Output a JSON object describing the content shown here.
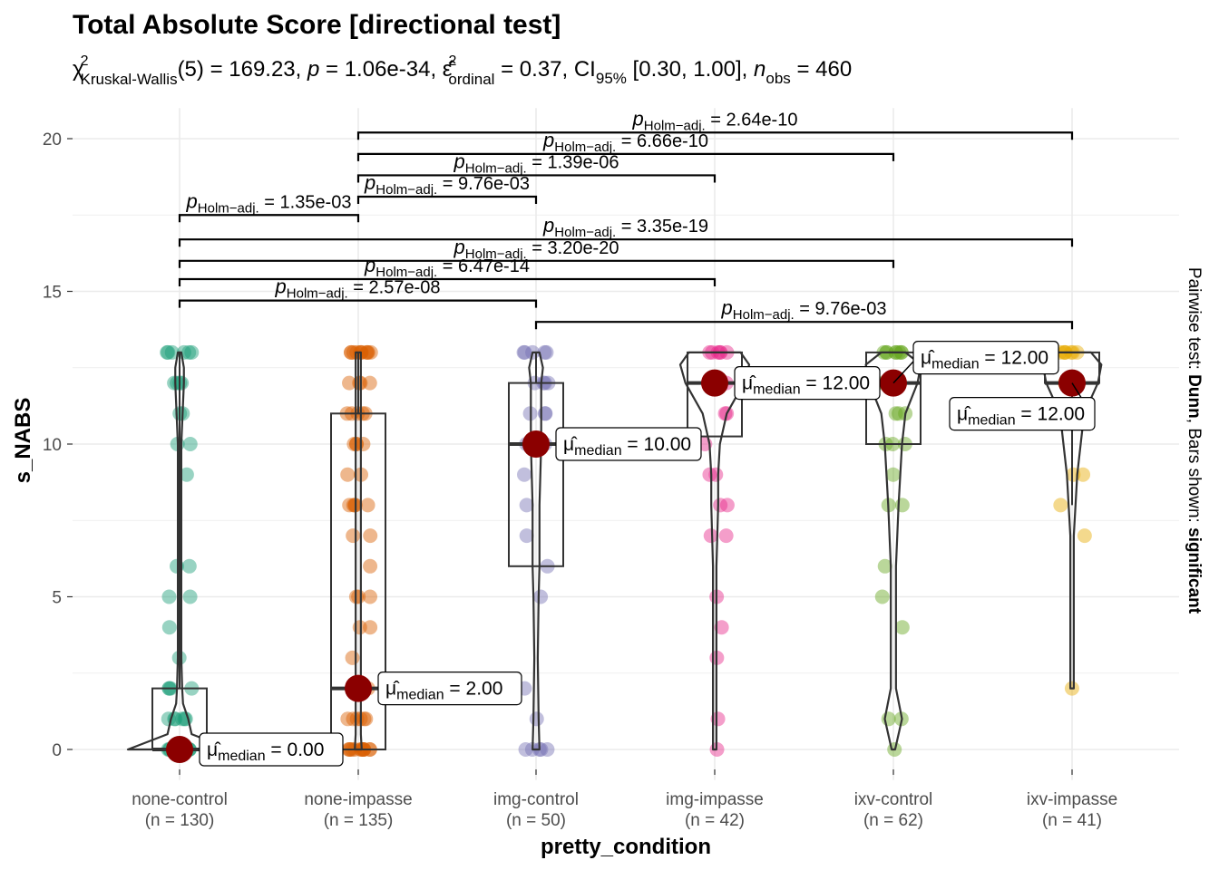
{
  "chart_data": {
    "type": "violin-box-scatter",
    "title": "Total Absolute Score [directional test]",
    "subtitle": {
      "chi_sym": "χ",
      "chi_sup": "2",
      "chi_sub": "Kruskal-Wallis",
      "chi_val": "(5) = 169.23, ",
      "p_sym": "p",
      "p_val": " = 1.06e-34, ",
      "eps_sym": "ε̂",
      "eps_sup": "2",
      "eps_sub": "ordinal",
      "eps_val": " = 0.37, CI",
      "ci_sub": "95%",
      "ci_val": " [0.30, 1.00], ",
      "n_sym": "n",
      "n_sub": "obs",
      "n_val": " = 460"
    },
    "xlabel": "pretty_condition",
    "ylabel": "s_NABS",
    "ylim": [
      -1,
      21
    ],
    "y_ticks": [
      0,
      5,
      10,
      15,
      20
    ],
    "caption": {
      "prefix": "Pairwise test: ",
      "test": "Dunn",
      "middle": ", Bars shown: ",
      "shown": "significant"
    },
    "groups": [
      {
        "label": "none-control",
        "n": "(n = 130)",
        "color": "#1B9E77",
        "q1": 0,
        "median": 0,
        "q3": 2,
        "whisker_high": 13,
        "mu_label": "0.00",
        "violin": [
          [
            0,
            60
          ],
          [
            0.5,
            14
          ],
          [
            1,
            10
          ],
          [
            1.5,
            4
          ],
          [
            2,
            3
          ],
          [
            3,
            2
          ],
          [
            5,
            2
          ],
          [
            8,
            2
          ],
          [
            10,
            2
          ],
          [
            12,
            5
          ],
          [
            12.5,
            5
          ],
          [
            13,
            2
          ]
        ],
        "points": [
          0,
          0,
          0,
          0,
          0,
          0,
          0,
          0,
          0,
          0,
          0,
          0,
          0,
          1,
          1,
          1,
          1,
          1,
          1,
          2,
          2,
          2,
          2,
          3,
          4,
          5,
          5,
          6,
          6,
          9,
          10,
          10,
          11,
          11,
          12,
          12,
          12,
          12,
          13,
          13,
          13,
          13,
          13,
          13
        ]
      },
      {
        "label": "none-impasse",
        "n": "(n = 135)",
        "color": "#D95F02",
        "q1": 0,
        "median": 2,
        "q3": 11,
        "whisker_high": 13,
        "mu_label": "2.00",
        "violin": [
          [
            0,
            4
          ],
          [
            0.5,
            3
          ],
          [
            1,
            3
          ],
          [
            2,
            3
          ],
          [
            4,
            3
          ],
          [
            6,
            3
          ],
          [
            8,
            3
          ],
          [
            10,
            3
          ],
          [
            11,
            3
          ],
          [
            12,
            3
          ],
          [
            13,
            3
          ]
        ],
        "points": [
          0,
          0,
          0,
          0,
          0,
          0,
          0,
          0,
          0,
          0,
          0,
          0,
          0,
          1,
          1,
          1,
          1,
          1,
          1,
          2,
          3,
          4,
          4,
          5,
          5,
          5,
          6,
          7,
          7,
          8,
          8,
          8,
          8,
          8,
          9,
          9,
          10,
          10,
          10,
          10,
          11,
          11,
          11,
          11,
          11,
          12,
          12,
          12,
          12,
          13,
          13,
          13,
          13,
          13,
          13,
          13,
          13,
          13,
          13,
          13
        ]
      },
      {
        "label": "img-control",
        "n": "(n = 50)",
        "color": "#7570B3",
        "q1": 6,
        "median": 10,
        "q3": 12,
        "whisker_high": 13,
        "mu_label": "10.00",
        "violin": [
          [
            0,
            4
          ],
          [
            1,
            3
          ],
          [
            3,
            2
          ],
          [
            5,
            3
          ],
          [
            6,
            4
          ],
          [
            8,
            4
          ],
          [
            10,
            6
          ],
          [
            11,
            6
          ],
          [
            12,
            6
          ],
          [
            12.5,
            8
          ],
          [
            13,
            4
          ]
        ],
        "points": [
          0,
          0,
          0,
          0,
          0,
          1,
          2,
          5,
          6,
          7,
          8,
          9,
          10,
          10,
          10,
          10,
          11,
          11,
          11,
          12,
          12,
          12,
          12,
          13,
          13,
          13,
          13,
          13
        ]
      },
      {
        "label": "img-impasse",
        "n": "(n = 42)",
        "color": "#E7298A",
        "q1": 10.25,
        "median": 12,
        "q3": 13,
        "whisker_high": 13,
        "mu_label": "12.00",
        "violin": [
          [
            0,
            2
          ],
          [
            2,
            2
          ],
          [
            4,
            2
          ],
          [
            6,
            2
          ],
          [
            7,
            3
          ],
          [
            8,
            4
          ],
          [
            9,
            4
          ],
          [
            10,
            6
          ],
          [
            11,
            14
          ],
          [
            12,
            34
          ],
          [
            12.6,
            40
          ],
          [
            13,
            30
          ]
        ],
        "points": [
          0,
          1,
          3,
          4,
          5,
          7,
          7,
          8,
          8,
          9,
          9,
          10,
          11,
          11,
          12,
          12,
          12,
          12,
          13,
          13,
          13,
          13,
          13,
          13
        ]
      },
      {
        "label": "ixv-control",
        "n": "(n = 62)",
        "color": "#66A61E",
        "q1": 10,
        "median": 12,
        "q3": 13,
        "whisker_high": 13,
        "mu_label": "12.00",
        "violin": [
          [
            0,
            2
          ],
          [
            1,
            10
          ],
          [
            2,
            3
          ],
          [
            4,
            3
          ],
          [
            6,
            3
          ],
          [
            8,
            6
          ],
          [
            10,
            10
          ],
          [
            11,
            14
          ],
          [
            12,
            28
          ],
          [
            12.6,
            32
          ],
          [
            13,
            14
          ]
        ],
        "points": [
          0,
          1,
          1,
          4,
          5,
          6,
          8,
          8,
          9,
          10,
          10,
          10,
          11,
          11,
          11,
          12,
          12,
          12,
          12,
          12,
          13,
          13,
          13,
          13,
          13,
          13,
          13,
          13
        ]
      },
      {
        "label": "ixv-impasse",
        "n": "(n = 41)",
        "color": "#E6AB02",
        "q1": 12,
        "median": 12,
        "q3": 13,
        "whisker_high": 13,
        "whisker_low": 8,
        "mu_label": "12.00",
        "violin": [
          [
            2,
            2
          ],
          [
            4,
            2
          ],
          [
            6,
            2
          ],
          [
            7,
            2
          ],
          [
            8,
            4
          ],
          [
            9,
            6
          ],
          [
            10,
            10
          ],
          [
            11,
            14
          ],
          [
            12,
            30
          ],
          [
            12.6,
            34
          ],
          [
            13,
            22
          ]
        ],
        "points": [
          2,
          7,
          8,
          9,
          9,
          11,
          12,
          12,
          12,
          12,
          12,
          12,
          12,
          13,
          13,
          13,
          13,
          13,
          13,
          13
        ]
      }
    ],
    "median_labels": {
      "mu": "μ̂",
      "sub": "median",
      "eq": " = "
    },
    "pairwise": [
      {
        "from": 0,
        "to": 1,
        "y": 17.5,
        "p": "1.35e-03"
      },
      {
        "from": 1,
        "to": 2,
        "y": 18.1,
        "p": "9.76e-03"
      },
      {
        "from": 1,
        "to": 3,
        "y": 18.8,
        "p": "1.39e-06"
      },
      {
        "from": 1,
        "to": 4,
        "y": 19.5,
        "p": "6.66e-10"
      },
      {
        "from": 1,
        "to": 5,
        "y": 20.2,
        "p": "2.64e-10"
      },
      {
        "from": 0,
        "to": 5,
        "y": 16.7,
        "p": "3.35e-19"
      },
      {
        "from": 0,
        "to": 4,
        "y": 16.0,
        "p": "3.20e-20"
      },
      {
        "from": 0,
        "to": 3,
        "y": 15.4,
        "p": "6.47e-14"
      },
      {
        "from": 0,
        "to": 2,
        "y": 14.7,
        "p": "2.57e-08"
      },
      {
        "from": 2,
        "to": 5,
        "y": 14.0,
        "p": "9.76e-03"
      }
    ],
    "p_label": {
      "sym": "p",
      "sub": "Holm−adj.",
      "eq": " = "
    },
    "mean_point_color": "#8B0000"
  }
}
